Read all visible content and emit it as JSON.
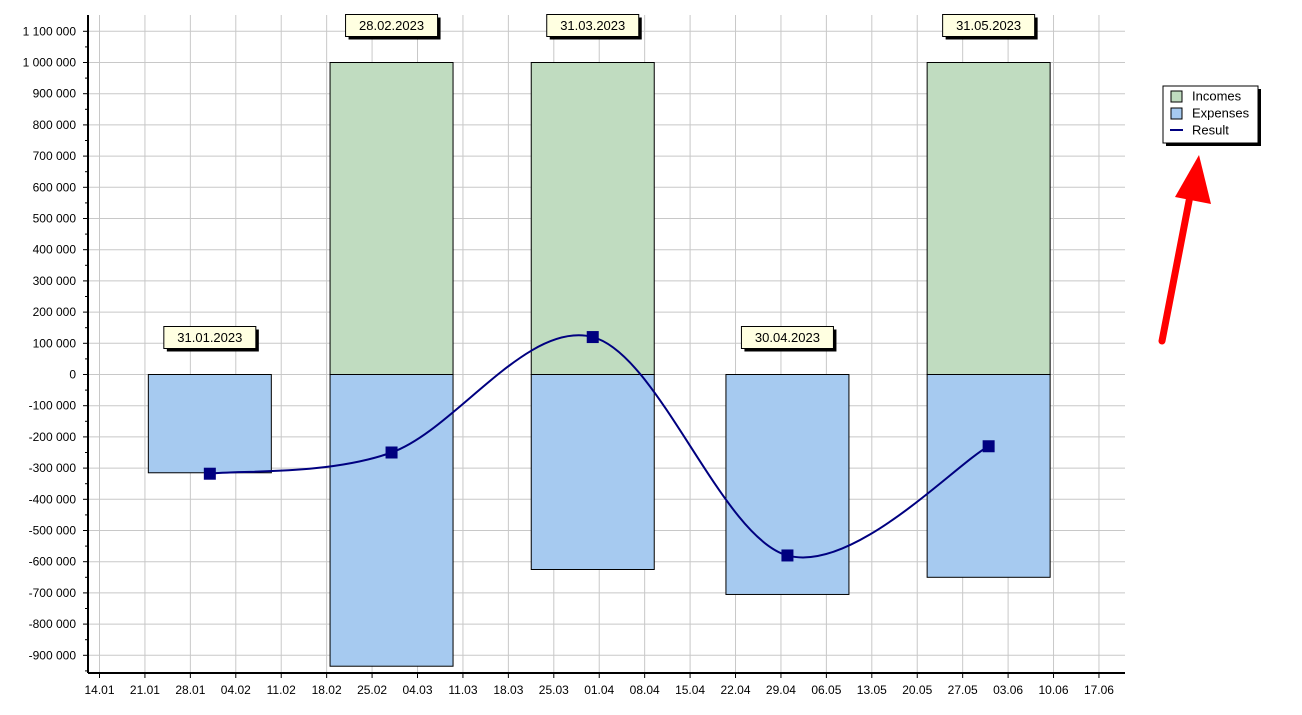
{
  "chart_data": {
    "type": "bar",
    "y_ticks": [
      1100000,
      1000000,
      900000,
      800000,
      700000,
      600000,
      500000,
      400000,
      300000,
      200000,
      100000,
      0,
      -100000,
      -200000,
      -300000,
      -400000,
      -500000,
      -600000,
      -700000,
      -800000,
      -900000
    ],
    "y_tick_labels": [
      "1 100 000",
      "1 000 000",
      "900 000",
      "800 000",
      "700 000",
      "600 000",
      "500 000",
      "400 000",
      "300 000",
      "200 000",
      "100 000",
      "0",
      "-100 000",
      "-200 000",
      "-300 000",
      "-400 000",
      "-500 000",
      "-600 000",
      "-700 000",
      "-800 000",
      "-900 000"
    ],
    "x_tick_dates": [
      "2023-01-14",
      "2023-01-21",
      "2023-01-28",
      "2023-02-04",
      "2023-02-11",
      "2023-02-18",
      "2023-02-25",
      "2023-03-04",
      "2023-03-11",
      "2023-03-18",
      "2023-03-25",
      "2023-04-01",
      "2023-04-08",
      "2023-04-15",
      "2023-04-22",
      "2023-04-29",
      "2023-05-06",
      "2023-05-13",
      "2023-05-20",
      "2023-05-27",
      "2023-06-03",
      "2023-06-10",
      "2023-06-17"
    ],
    "x_tick_labels": [
      "14.01",
      "21.01",
      "28.01",
      "04.02",
      "11.02",
      "18.02",
      "25.02",
      "04.03",
      "11.03",
      "18.03",
      "25.03",
      "01.04",
      "08.04",
      "15.04",
      "22.04",
      "29.04",
      "06.05",
      "13.05",
      "20.05",
      "27.05",
      "03.06",
      "10.06",
      "17.06"
    ],
    "ylim": [
      -960000,
      1150000
    ],
    "grid": true,
    "categories": [
      "2023-01-31",
      "2023-02-28",
      "2023-03-31",
      "2023-04-30",
      "2023-05-31"
    ],
    "category_labels": [
      "31.01.2023",
      "28.02.2023",
      "31.03.2023",
      "30.04.2023",
      "31.05.2023"
    ],
    "series": [
      {
        "name": "Incomes",
        "type": "bar",
        "values": [
          0,
          1000000,
          1000000,
          0,
          1000000
        ]
      },
      {
        "name": "Expenses",
        "type": "bar",
        "values": [
          -315000,
          -935000,
          -625000,
          -705000,
          -650000
        ]
      },
      {
        "name": "Result",
        "type": "line",
        "values": [
          -318000,
          -250000,
          120000,
          -580000,
          -230000
        ]
      }
    ],
    "legend": {
      "position": "right",
      "entries": [
        "Incomes",
        "Expenses",
        "Result"
      ]
    },
    "colors": {
      "incomes": "#c0dcc0",
      "expenses": "#a6caf0",
      "result": "#000080",
      "grid": "#c8c8c8",
      "label_bg": "#ffffe1",
      "arrow": "#ff0000"
    }
  }
}
